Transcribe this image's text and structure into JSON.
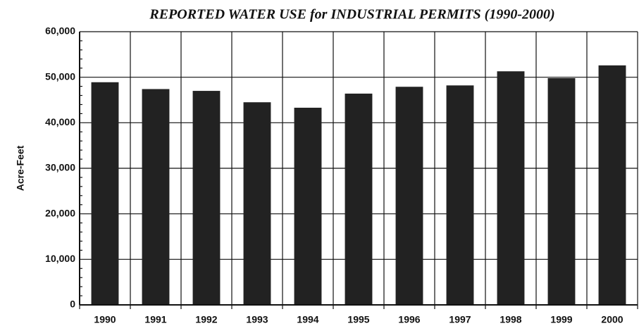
{
  "chart_data": {
    "type": "bar",
    "title": "REPORTED WATER USE for INDUSTRIAL PERMITS (1990-2000)",
    "y_label": "Acre-Feet",
    "categories": [
      "1990",
      "1991",
      "1992",
      "1993",
      "1994",
      "1995",
      "1996",
      "1997",
      "1998",
      "1999",
      "2000"
    ],
    "values": [
      48900,
      47400,
      47000,
      44500,
      43300,
      46400,
      47900,
      48200,
      51300,
      49800,
      52600
    ],
    "color": "#222222",
    "ylim": [
      0,
      60000
    ],
    "yticks": [
      0,
      {
        "value": 10000,
        "label": "10,000"
      },
      {
        "value": 20000,
        "label": "20,000"
      },
      {
        "value": 30000,
        "label": "30,000"
      },
      {
        "value": 40000,
        "label": "40,000"
      },
      {
        "value": 50000,
        "label": "50,000"
      },
      {
        "value": 60000,
        "label": "60,000"
      }
    ],
    "grid": true
  }
}
